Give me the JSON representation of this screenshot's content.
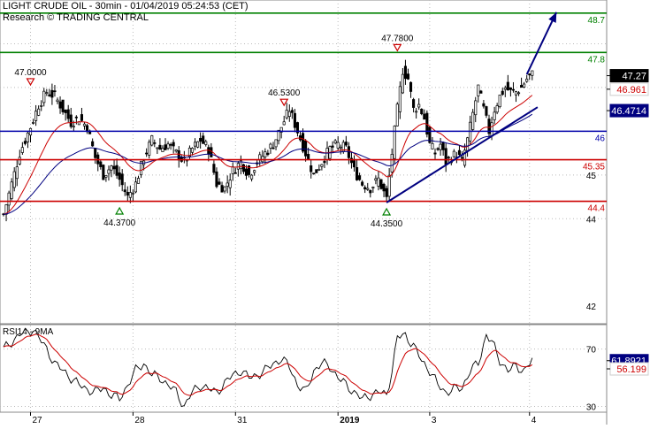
{
  "header": {
    "title": "LIGHT CRUDE OIL - 30min - 01/04/2019 05:24:53 (CET)",
    "credit": "Research © TRADING CENTRAL"
  },
  "chart_data": [
    {
      "type": "candlestick",
      "title": "LIGHT CRUDE OIL - 30min - 01/04/2019 05:24:53 (CET)",
      "ylim": [
        41.6,
        49.0
      ],
      "y_ticks": [
        42,
        44,
        45
      ],
      "x_ticks": [
        "27",
        "28",
        "31",
        "2019",
        "3",
        "4"
      ],
      "last_price": "47.27",
      "price_path": [
        [
          0,
          44.1
        ],
        [
          3,
          44.8
        ],
        [
          6,
          45.5
        ],
        [
          10,
          46.1
        ],
        [
          13,
          46.6
        ],
        [
          16,
          46.9
        ],
        [
          19,
          46.8
        ],
        [
          22,
          46.5
        ],
        [
          25,
          46.2
        ],
        [
          28,
          46.3
        ],
        [
          31,
          46.1
        ],
        [
          34,
          45.4
        ],
        [
          37,
          45.0
        ],
        [
          40,
          45.2
        ],
        [
          43,
          44.9
        ],
        [
          46,
          44.5
        ],
        [
          49,
          44.8
        ],
        [
          52,
          45.4
        ],
        [
          55,
          45.8
        ],
        [
          58,
          45.6
        ],
        [
          61,
          45.7
        ],
        [
          64,
          45.5
        ],
        [
          67,
          45.3
        ],
        [
          70,
          45.6
        ],
        [
          73,
          45.8
        ],
        [
          76,
          45.6
        ],
        [
          79,
          44.8
        ],
        [
          82,
          44.7
        ],
        [
          85,
          45.1
        ],
        [
          88,
          45.3
        ],
        [
          91,
          45.0
        ],
        [
          94,
          45.3
        ],
        [
          97,
          45.5
        ],
        [
          100,
          45.7
        ],
        [
          103,
          46.1
        ],
        [
          106,
          46.5
        ],
        [
          109,
          46.0
        ],
        [
          112,
          45.5
        ],
        [
          115,
          45.0
        ],
        [
          118,
          45.3
        ],
        [
          121,
          45.6
        ],
        [
          124,
          45.7
        ],
        [
          127,
          45.6
        ],
        [
          130,
          45.1
        ],
        [
          133,
          44.8
        ],
        [
          136,
          44.7
        ],
        [
          139,
          44.9
        ],
        [
          142,
          44.45
        ],
        [
          144,
          45.5
        ],
        [
          146,
          46.5
        ],
        [
          148,
          47.4
        ],
        [
          150,
          47.2
        ],
        [
          152,
          46.5
        ],
        [
          154,
          46.6
        ],
        [
          156,
          46.3
        ],
        [
          158,
          45.7
        ],
        [
          160,
          45.5
        ],
        [
          162,
          45.7
        ],
        [
          164,
          45.3
        ],
        [
          166,
          45.4
        ],
        [
          168,
          45.5
        ],
        [
          170,
          45.3
        ],
        [
          172,
          45.8
        ],
        [
          174,
          46.4
        ],
        [
          176,
          47.0
        ],
        [
          178,
          46.5
        ],
        [
          180,
          46.0
        ],
        [
          182,
          46.5
        ],
        [
          184,
          46.8
        ],
        [
          186,
          47.0
        ],
        [
          188,
          46.9
        ],
        [
          190,
          46.9
        ],
        [
          192,
          47.0
        ],
        [
          194,
          47.2
        ],
        [
          196,
          47.3
        ]
      ],
      "moving_averages": [
        {
          "color": "#cc0000",
          "period": 20
        },
        {
          "color": "#000080",
          "period": 50
        }
      ],
      "horizontal_levels": [
        {
          "value": 48.7,
          "label": "48.7",
          "color": "#008000"
        },
        {
          "value": 47.8,
          "label": "47.8",
          "color": "#008000"
        },
        {
          "value": 46.0,
          "label": "46",
          "color": "#0000aa"
        },
        {
          "value": 45.35,
          "label": "45.35",
          "color": "#cc0000"
        },
        {
          "value": 44.4,
          "label": "44.4",
          "color": "#cc0000"
        }
      ],
      "trendline": {
        "from": [
          142,
          44.37
        ],
        "to": [
          198,
          46.55
        ],
        "color": "#000080"
      },
      "projection_arrow": {
        "from": [
          194,
          47.3
        ],
        "to": [
          205,
          48.72
        ],
        "color": "#000080"
      },
      "peaks": [
        {
          "x": 10,
          "y": 47.0,
          "label": "47.0000",
          "kind": "high"
        },
        {
          "x": 104,
          "y": 46.53,
          "label": "46.5300",
          "kind": "high"
        },
        {
          "x": 146,
          "y": 47.78,
          "label": "47.7800",
          "kind": "high"
        },
        {
          "x": 43,
          "y": 44.37,
          "label": "44.3700",
          "kind": "low"
        },
        {
          "x": 142,
          "y": 44.35,
          "label": "44.3500",
          "kind": "low"
        }
      ],
      "price_tags": [
        {
          "value": 47.27,
          "label": "47.27",
          "bg": "#000000",
          "fg": "#ffffff"
        },
        {
          "value": 46.961,
          "label": "46.961",
          "bg": "#ffffff",
          "fg": "#cc0000"
        },
        {
          "value": 46.4714,
          "label": "46.4714",
          "bg": "#000080",
          "fg": "#ffffff"
        }
      ]
    },
    {
      "type": "line",
      "title": "RSI14 - 9MA",
      "ylim": [
        26,
        87
      ],
      "y_ticks": [
        30,
        70
      ],
      "rsi_path": [
        [
          0,
          70
        ],
        [
          3,
          75
        ],
        [
          6,
          80
        ],
        [
          9,
          82
        ],
        [
          11,
          84
        ],
        [
          13,
          78
        ],
        [
          16,
          70
        ],
        [
          19,
          60
        ],
        [
          22,
          55
        ],
        [
          25,
          50
        ],
        [
          28,
          45
        ],
        [
          31,
          42
        ],
        [
          34,
          40
        ],
        [
          37,
          43
        ],
        [
          40,
          38
        ],
        [
          43,
          35
        ],
        [
          46,
          45
        ],
        [
          49,
          55
        ],
        [
          52,
          60
        ],
        [
          55,
          52
        ],
        [
          58,
          50
        ],
        [
          61,
          45
        ],
        [
          64,
          40
        ],
        [
          67,
          30
        ],
        [
          70,
          40
        ],
        [
          73,
          45
        ],
        [
          76,
          42
        ],
        [
          79,
          40
        ],
        [
          82,
          46
        ],
        [
          85,
          52
        ],
        [
          88,
          55
        ],
        [
          91,
          50
        ],
        [
          94,
          52
        ],
        [
          97,
          55
        ],
        [
          100,
          60
        ],
        [
          103,
          63
        ],
        [
          106,
          58
        ],
        [
          109,
          45
        ],
        [
          112,
          40
        ],
        [
          115,
          55
        ],
        [
          118,
          60
        ],
        [
          121,
          58
        ],
        [
          124,
          50
        ],
        [
          127,
          45
        ],
        [
          130,
          40
        ],
        [
          133,
          35
        ],
        [
          136,
          38
        ],
        [
          139,
          40
        ],
        [
          142,
          38
        ],
        [
          144,
          55
        ],
        [
          146,
          78
        ],
        [
          149,
          80
        ],
        [
          152,
          72
        ],
        [
          155,
          62
        ],
        [
          158,
          55
        ],
        [
          161,
          45
        ],
        [
          164,
          40
        ],
        [
          167,
          42
        ],
        [
          170,
          43
        ],
        [
          173,
          55
        ],
        [
          176,
          60
        ],
        [
          179,
          80
        ],
        [
          181,
          75
        ],
        [
          184,
          62
        ],
        [
          187,
          55
        ],
        [
          190,
          58
        ],
        [
          193,
          55
        ],
        [
          196,
          62
        ]
      ],
      "ma_period": 9,
      "last_values": [
        {
          "value": 61.8921,
          "label": "61.8921",
          "bg": "#000080",
          "fg": "#ffffff"
        },
        {
          "value": 56.199,
          "label": "56.199",
          "bg": "#ffffff",
          "fg": "#cc0000"
        }
      ]
    }
  ]
}
